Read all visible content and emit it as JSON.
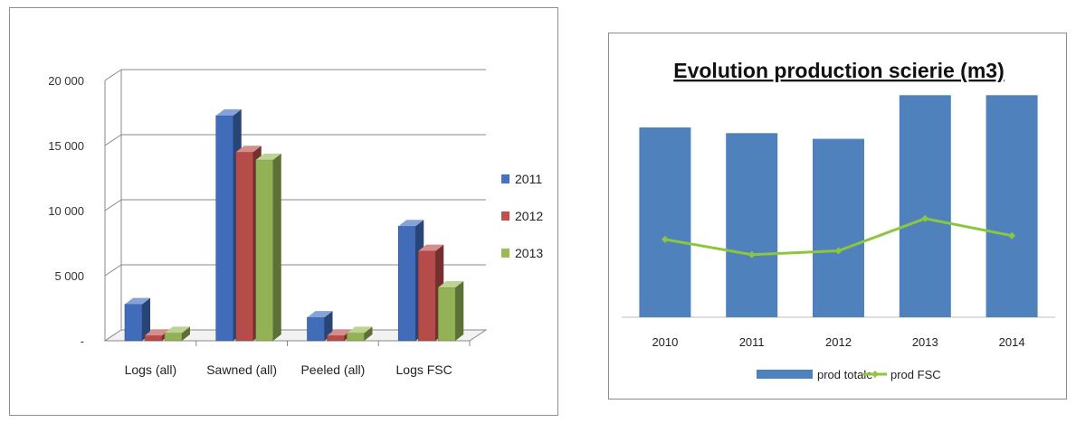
{
  "chart_data": [
    {
      "type": "bar",
      "style": "3d-clustered-column",
      "title": "",
      "categories": [
        "Logs (all)",
        "Sawned (all)",
        "Peeled (all)",
        "Logs FSC"
      ],
      "y_ticks": [
        "-",
        "5 000",
        "10 000",
        "15 000",
        "20 000"
      ],
      "ylim": [
        0,
        20000
      ],
      "grid": true,
      "legend_position": "right",
      "series": [
        {
          "name": "2011",
          "color": "#4472C4",
          "values": [
            2800,
            17300,
            1800,
            8800
          ]
        },
        {
          "name": "2012",
          "color": "#C0504D",
          "values": [
            400,
            14500,
            400,
            6900
          ]
        },
        {
          "name": "2013",
          "color": "#9BBB59",
          "values": [
            600,
            13900,
            600,
            4100
          ]
        }
      ]
    },
    {
      "type": "bar",
      "title": "Evolution production scierie (m3)",
      "categories": [
        "2010",
        "2011",
        "2012",
        "2013",
        "2014"
      ],
      "grid": false,
      "legend_position": "bottom",
      "series": [
        {
          "name": "prod totale",
          "kind": "bar",
          "color": "#4F81BD",
          "values": [
            100,
            97,
            94,
            117,
            117
          ]
        },
        {
          "name": "prod FSC",
          "kind": "line",
          "color": "#8CC63F",
          "values": [
            41,
            33,
            35,
            52,
            43
          ]
        }
      ]
    }
  ]
}
